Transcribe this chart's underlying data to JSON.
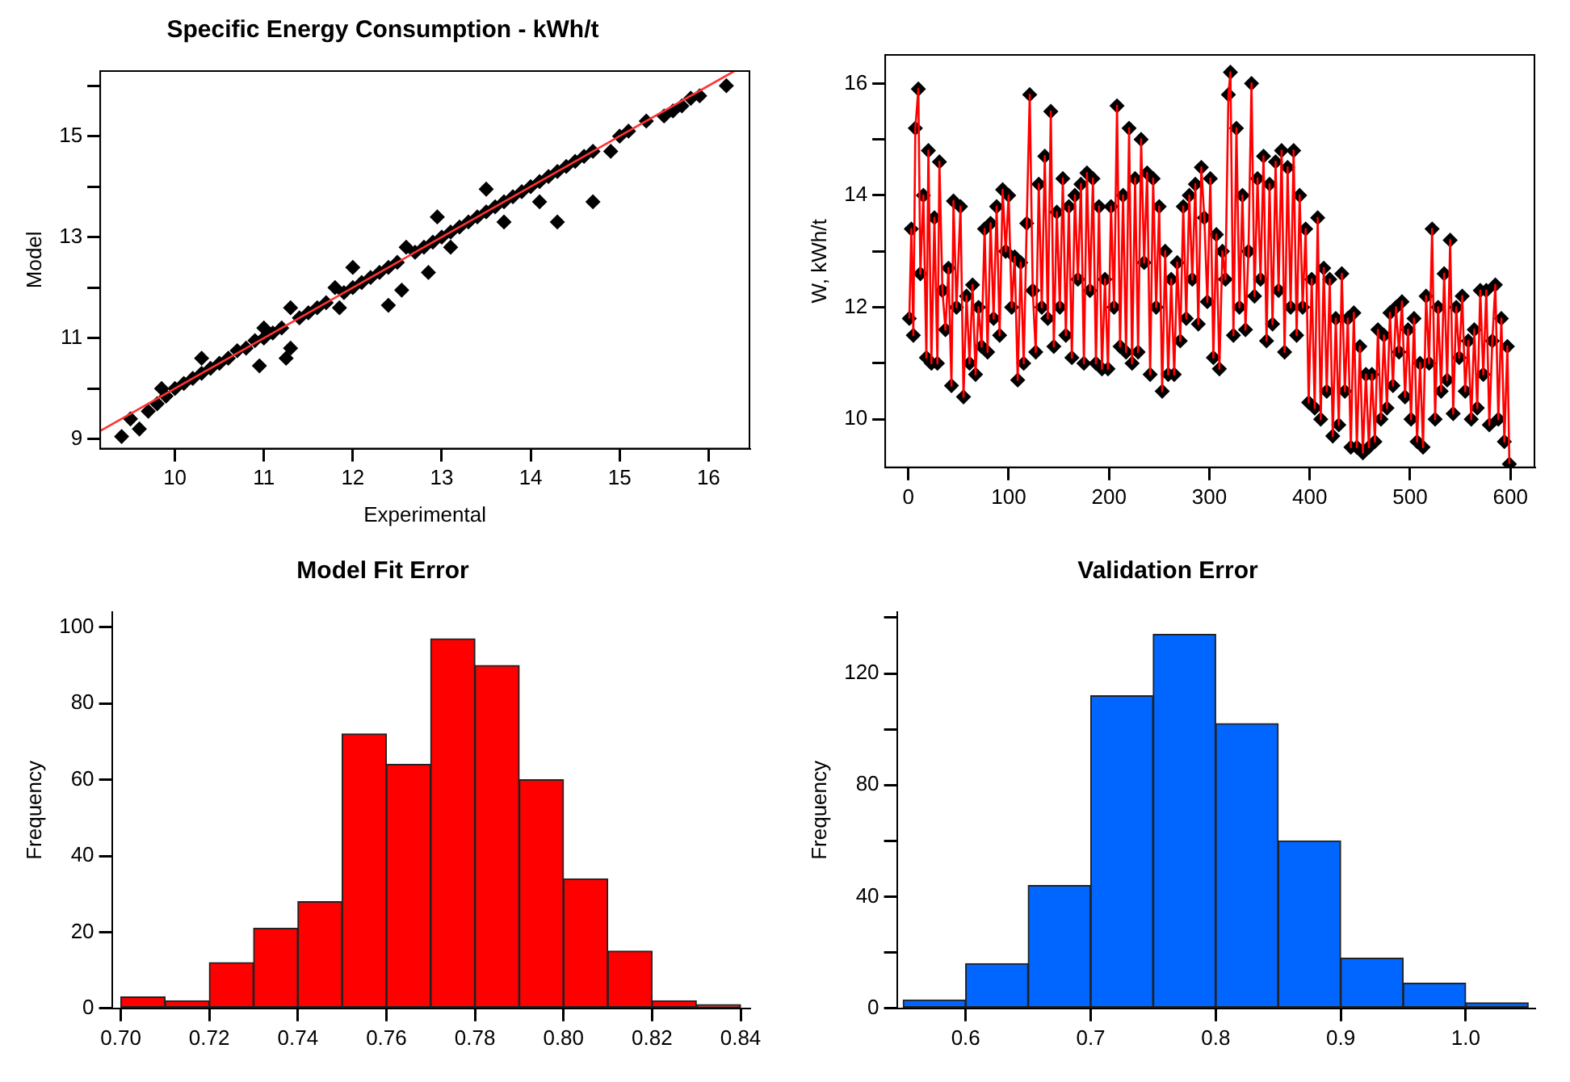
{
  "chart_data": [
    {
      "type": "scatter",
      "title": "Specific Energy Consumption - kWh/t",
      "xlabel": "Experimental",
      "ylabel": "Model",
      "xlim": [
        9.16,
        16.46
      ],
      "ylim": [
        8.81,
        16.29
      ],
      "xticks": [
        10,
        11,
        12,
        13,
        14,
        15,
        16
      ],
      "yticks": [
        9,
        {
          "value": 10,
          "label": null
        },
        11,
        {
          "value": 12,
          "label": null
        },
        13,
        {
          "value": 14,
          "label": null
        },
        15,
        {
          "value": 16,
          "label": null
        }
      ],
      "grid": false,
      "legend": false,
      "marker": "diamond",
      "series": [
        {
          "type": "scatter",
          "color": "#000000",
          "x": [
            9.4,
            9.5,
            9.6,
            9.7,
            9.8,
            9.85,
            9.9,
            10.0,
            10.1,
            10.2,
            10.3,
            10.3,
            10.4,
            10.5,
            10.6,
            10.7,
            10.8,
            10.9,
            10.95,
            11.0,
            11.0,
            11.1,
            11.2,
            11.25,
            11.3,
            11.3,
            11.4,
            11.5,
            11.6,
            11.7,
            11.8,
            11.85,
            11.9,
            12.0,
            12.0,
            12.1,
            12.2,
            12.3,
            12.4,
            12.4,
            12.5,
            12.55,
            12.6,
            12.7,
            12.8,
            12.85,
            12.9,
            12.95,
            13.0,
            13.1,
            13.1,
            13.2,
            13.3,
            13.4,
            13.5,
            13.5,
            13.6,
            13.7,
            13.7,
            13.8,
            13.9,
            14.0,
            14.1,
            14.1,
            14.2,
            14.3,
            14.3,
            14.4,
            14.5,
            14.6,
            14.7,
            14.7,
            14.9,
            15.0,
            15.1,
            15.3,
            15.5,
            15.6,
            15.7,
            15.8,
            15.9,
            16.2
          ],
          "values": [
            9.05,
            9.4,
            9.2,
            9.55,
            9.7,
            10.0,
            9.85,
            10.0,
            10.1,
            10.2,
            10.3,
            10.6,
            10.4,
            10.5,
            10.6,
            10.75,
            10.8,
            10.95,
            10.45,
            11.0,
            11.2,
            11.1,
            11.2,
            10.6,
            10.8,
            11.6,
            11.4,
            11.5,
            11.6,
            11.7,
            12.0,
            11.6,
            11.9,
            12.0,
            12.4,
            12.1,
            12.2,
            12.3,
            12.4,
            11.65,
            12.5,
            11.95,
            12.8,
            12.7,
            12.8,
            12.3,
            12.9,
            13.4,
            13.0,
            12.8,
            13.1,
            13.2,
            13.3,
            13.4,
            13.5,
            13.95,
            13.6,
            13.3,
            13.7,
            13.8,
            13.9,
            14.0,
            13.7,
            14.1,
            14.2,
            14.3,
            13.3,
            14.4,
            14.5,
            14.6,
            14.7,
            13.7,
            14.7,
            15.0,
            15.1,
            15.3,
            15.4,
            15.5,
            15.6,
            15.75,
            15.8,
            16.0
          ]
        },
        {
          "type": "line",
          "color": "#ff3333",
          "marker": "none",
          "x": [
            9.16,
            16.29
          ],
          "values": [
            9.16,
            16.29
          ]
        }
      ]
    },
    {
      "type": "line",
      "ylabel": "W, kWh/t",
      "xlim": [
        -23,
        624
      ],
      "ylim": [
        9.14,
        16.51
      ],
      "xticks": [
        0,
        100,
        200,
        300,
        400,
        500,
        600
      ],
      "yticks": [
        10,
        {
          "value": 11,
          "label": null
        },
        12,
        {
          "value": 13,
          "label": null
        },
        14,
        {
          "value": 15,
          "label": null
        },
        16
      ],
      "grid": false,
      "legend": false,
      "series": [
        {
          "type": "scatter",
          "color": "#000000",
          "marker": "diamond",
          "x": [
            1,
            3,
            5,
            7,
            10,
            12,
            15,
            18,
            20,
            23,
            26,
            29,
            31,
            34,
            37,
            40,
            43,
            45,
            48,
            52,
            55,
            58,
            61,
            64,
            67,
            70,
            73,
            76,
            79,
            82,
            85,
            88,
            91,
            94,
            97,
            100,
            103,
            106,
            109,
            112,
            115,
            118,
            121,
            124,
            127,
            130,
            133,
            136,
            139,
            142,
            145,
            148,
            151,
            154,
            157,
            160,
            163,
            166,
            169,
            172,
            175,
            178,
            181,
            184,
            187,
            190,
            193,
            196,
            199,
            202,
            205,
            208,
            211,
            214,
            217,
            220,
            223,
            226,
            229,
            232,
            235,
            238,
            241,
            244,
            247,
            250,
            253,
            256,
            259,
            262,
            265,
            268,
            271,
            274,
            277,
            280,
            283,
            286,
            289,
            292,
            295,
            298,
            301,
            304,
            307,
            310,
            313,
            316,
            319,
            321,
            324,
            327,
            330,
            333,
            336,
            339,
            342,
            345,
            348,
            351,
            354,
            357,
            360,
            363,
            366,
            369,
            372,
            375,
            378,
            381,
            384,
            387,
            390,
            393,
            396,
            399,
            402,
            405,
            408,
            411,
            414,
            417,
            420,
            423,
            426,
            429,
            432,
            435,
            438,
            441,
            444,
            447,
            450,
            453,
            456,
            459,
            462,
            465,
            468,
            471,
            474,
            477,
            480,
            483,
            486,
            489,
            492,
            495,
            498,
            501,
            504,
            507,
            510,
            513,
            516,
            519,
            522,
            525,
            528,
            531,
            534,
            537,
            540,
            543,
            546,
            549,
            552,
            555,
            558,
            561,
            564,
            567,
            570,
            573,
            576,
            579,
            582,
            585,
            588,
            591,
            594,
            597,
            599
          ],
          "values": [
            11.8,
            13.4,
            11.5,
            15.2,
            15.9,
            12.6,
            14.0,
            11.1,
            14.8,
            11.0,
            13.6,
            11.0,
            14.6,
            12.3,
            11.6,
            12.7,
            10.6,
            13.9,
            12.0,
            13.8,
            10.4,
            12.2,
            11.0,
            12.4,
            10.8,
            12.0,
            11.3,
            13.4,
            11.2,
            13.5,
            11.8,
            13.8,
            11.5,
            14.1,
            13.0,
            14.0,
            12.0,
            12.9,
            10.7,
            12.8,
            11.0,
            13.5,
            15.8,
            12.3,
            11.2,
            14.2,
            12.0,
            14.7,
            11.8,
            15.5,
            11.3,
            13.7,
            12.0,
            14.3,
            11.5,
            13.8,
            11.1,
            14.0,
            12.5,
            14.2,
            11.0,
            14.4,
            12.3,
            14.3,
            11.0,
            13.8,
            10.9,
            12.5,
            10.9,
            13.8,
            12.0,
            15.6,
            11.3,
            14.0,
            11.2,
            15.2,
            11.0,
            14.3,
            11.2,
            15.0,
            12.8,
            14.4,
            10.8,
            14.3,
            12.0,
            13.8,
            10.5,
            13.0,
            10.8,
            12.5,
            10.8,
            12.8,
            11.4,
            13.8,
            11.8,
            14.0,
            12.5,
            14.2,
            11.7,
            14.5,
            13.6,
            12.1,
            14.3,
            11.1,
            13.3,
            10.9,
            13.0,
            12.5,
            15.8,
            16.2,
            11.5,
            15.2,
            12.0,
            14.0,
            11.6,
            13.0,
            16.0,
            12.2,
            14.3,
            12.5,
            14.7,
            11.4,
            14.2,
            11.7,
            14.6,
            12.3,
            14.8,
            11.2,
            14.5,
            12.0,
            14.8,
            11.5,
            14.0,
            12.0,
            13.4,
            10.3,
            12.5,
            10.2,
            13.6,
            10.0,
            12.7,
            10.5,
            12.5,
            9.7,
            11.8,
            9.9,
            12.6,
            10.5,
            11.8,
            9.5,
            11.9,
            9.5,
            11.3,
            9.4,
            10.8,
            9.5,
            10.8,
            9.6,
            11.6,
            10.0,
            11.5,
            10.2,
            11.9,
            10.6,
            12.0,
            11.2,
            12.1,
            10.4,
            11.6,
            10.0,
            11.8,
            9.6,
            11.0,
            9.5,
            12.2,
            11.0,
            13.4,
            10.0,
            12.0,
            10.5,
            12.6,
            10.7,
            13.2,
            10.1,
            12.0,
            11.1,
            12.2,
            10.5,
            11.4,
            10.0,
            11.6,
            10.2,
            12.3,
            10.8,
            12.3,
            9.9,
            11.4,
            12.4,
            10.0,
            11.8,
            9.6,
            11.3,
            9.2
          ]
        },
        {
          "type": "line",
          "color": "#ff0000",
          "marker": "none",
          "x": [
            1,
            3,
            5,
            7,
            10,
            12,
            15,
            18,
            20,
            23,
            26,
            29,
            31,
            34,
            37,
            40,
            43,
            45,
            48,
            52,
            55,
            58,
            61,
            64,
            67,
            70,
            73,
            76,
            79,
            82,
            85,
            88,
            91,
            94,
            97,
            100,
            103,
            106,
            109,
            112,
            115,
            118,
            121,
            124,
            127,
            130,
            133,
            136,
            139,
            142,
            145,
            148,
            151,
            154,
            157,
            160,
            163,
            166,
            169,
            172,
            175,
            178,
            181,
            184,
            187,
            190,
            193,
            196,
            199,
            202,
            205,
            208,
            211,
            214,
            217,
            220,
            223,
            226,
            229,
            232,
            235,
            238,
            241,
            244,
            247,
            250,
            253,
            256,
            259,
            262,
            265,
            268,
            271,
            274,
            277,
            280,
            283,
            286,
            289,
            292,
            295,
            298,
            301,
            304,
            307,
            310,
            313,
            316,
            319,
            321,
            324,
            327,
            330,
            333,
            336,
            339,
            342,
            345,
            348,
            351,
            354,
            357,
            360,
            363,
            366,
            369,
            372,
            375,
            378,
            381,
            384,
            387,
            390,
            393,
            396,
            399,
            402,
            405,
            408,
            411,
            414,
            417,
            420,
            423,
            426,
            429,
            432,
            435,
            438,
            441,
            444,
            447,
            450,
            453,
            456,
            459,
            462,
            465,
            468,
            471,
            474,
            477,
            480,
            483,
            486,
            489,
            492,
            495,
            498,
            501,
            504,
            507,
            510,
            513,
            516,
            519,
            522,
            525,
            528,
            531,
            534,
            537,
            540,
            543,
            546,
            549,
            552,
            555,
            558,
            561,
            564,
            567,
            570,
            573,
            576,
            579,
            582,
            585,
            588,
            591,
            594,
            597,
            599
          ],
          "values": [
            11.8,
            13.4,
            11.5,
            15.2,
            15.9,
            12.6,
            14.0,
            11.1,
            14.8,
            11.0,
            13.6,
            11.0,
            14.6,
            12.3,
            11.6,
            12.7,
            10.6,
            13.9,
            12.0,
            13.8,
            10.4,
            12.2,
            11.0,
            12.4,
            10.8,
            12.0,
            11.3,
            13.4,
            11.2,
            13.5,
            11.8,
            13.8,
            11.5,
            14.1,
            13.0,
            14.0,
            12.0,
            12.9,
            10.7,
            12.8,
            11.0,
            13.5,
            15.8,
            12.3,
            11.2,
            14.2,
            12.0,
            14.7,
            11.8,
            15.5,
            11.3,
            13.7,
            12.0,
            14.3,
            11.5,
            13.8,
            11.1,
            14.0,
            12.5,
            14.2,
            11.0,
            14.4,
            12.3,
            14.3,
            11.0,
            13.8,
            10.9,
            12.5,
            10.9,
            13.8,
            12.0,
            15.6,
            11.3,
            14.0,
            11.2,
            15.2,
            11.0,
            14.3,
            11.2,
            15.0,
            12.8,
            14.4,
            10.8,
            14.3,
            12.0,
            13.8,
            10.5,
            13.0,
            10.8,
            12.5,
            10.8,
            12.8,
            11.4,
            13.8,
            11.8,
            14.0,
            12.5,
            14.2,
            11.7,
            14.5,
            13.6,
            12.1,
            14.3,
            11.1,
            13.3,
            10.9,
            13.0,
            12.5,
            15.8,
            16.2,
            11.5,
            15.2,
            12.0,
            14.0,
            11.6,
            13.0,
            16.0,
            12.2,
            14.3,
            12.5,
            14.7,
            11.4,
            14.2,
            11.7,
            14.6,
            12.3,
            14.8,
            11.2,
            14.5,
            12.0,
            14.8,
            11.5,
            14.0,
            12.0,
            13.4,
            10.3,
            12.5,
            10.2,
            13.6,
            10.0,
            12.7,
            10.5,
            12.5,
            9.7,
            11.8,
            9.9,
            12.6,
            10.5,
            11.8,
            9.5,
            11.9,
            9.5,
            11.3,
            9.4,
            10.8,
            9.5,
            10.8,
            9.6,
            11.6,
            10.0,
            11.5,
            10.2,
            11.9,
            10.6,
            12.0,
            11.2,
            12.1,
            10.4,
            11.6,
            10.0,
            11.8,
            9.6,
            11.0,
            9.5,
            12.2,
            11.0,
            13.4,
            10.0,
            12.0,
            10.5,
            12.6,
            10.7,
            13.2,
            10.1,
            12.0,
            11.1,
            12.2,
            10.5,
            11.4,
            10.0,
            11.6,
            10.2,
            12.3,
            10.8,
            12.3,
            9.9,
            11.4,
            12.4,
            10.0,
            11.8,
            9.6,
            11.3,
            9.2
          ]
        }
      ]
    },
    {
      "type": "histogram",
      "title": "Model Fit Error",
      "ylabel": "Frequency",
      "color": "#ff0000",
      "bins": [
        0.7,
        0.71,
        0.72,
        0.73,
        0.74,
        0.75,
        0.76,
        0.77,
        0.78,
        0.79,
        0.8,
        0.81,
        0.82,
        0.83,
        0.84
      ],
      "values": [
        3,
        2,
        12,
        21,
        28,
        72,
        64,
        97,
        90,
        60,
        34,
        15,
        2,
        1
      ],
      "xlim": [
        0.698,
        0.842
      ],
      "ylim": [
        0,
        104
      ],
      "xticks": [
        {
          "value": 0.7,
          "label": "0.70"
        },
        0.72,
        0.74,
        0.76,
        0.78,
        {
          "value": 0.8,
          "label": "0.80"
        },
        0.82,
        0.84
      ],
      "yticks": [
        0,
        20,
        40,
        60,
        80,
        100
      ],
      "grid": false,
      "legend": false
    },
    {
      "type": "histogram",
      "title": "Validation Error",
      "ylabel": "Frequency",
      "color": "#0066ff",
      "bins": [
        0.55,
        0.6,
        0.65,
        0.7,
        0.75,
        0.8,
        0.85,
        0.9,
        0.95,
        1.0,
        1.05
      ],
      "values": [
        3,
        16,
        44,
        112,
        134,
        102,
        60,
        18,
        9,
        2
      ],
      "xlim": [
        0.545,
        1.055
      ],
      "ylim": [
        0,
        142
      ],
      "xticks": [
        0.6,
        0.7,
        0.8,
        0.9,
        {
          "value": 1.0,
          "label": "1.0"
        }
      ],
      "yticks": [
        0,
        {
          "value": 20,
          "label": null
        },
        40,
        {
          "value": 60,
          "label": null
        },
        80,
        {
          "value": 100,
          "label": null
        },
        120,
        {
          "value": 140,
          "label": null
        }
      ],
      "grid": false,
      "legend": false
    }
  ]
}
